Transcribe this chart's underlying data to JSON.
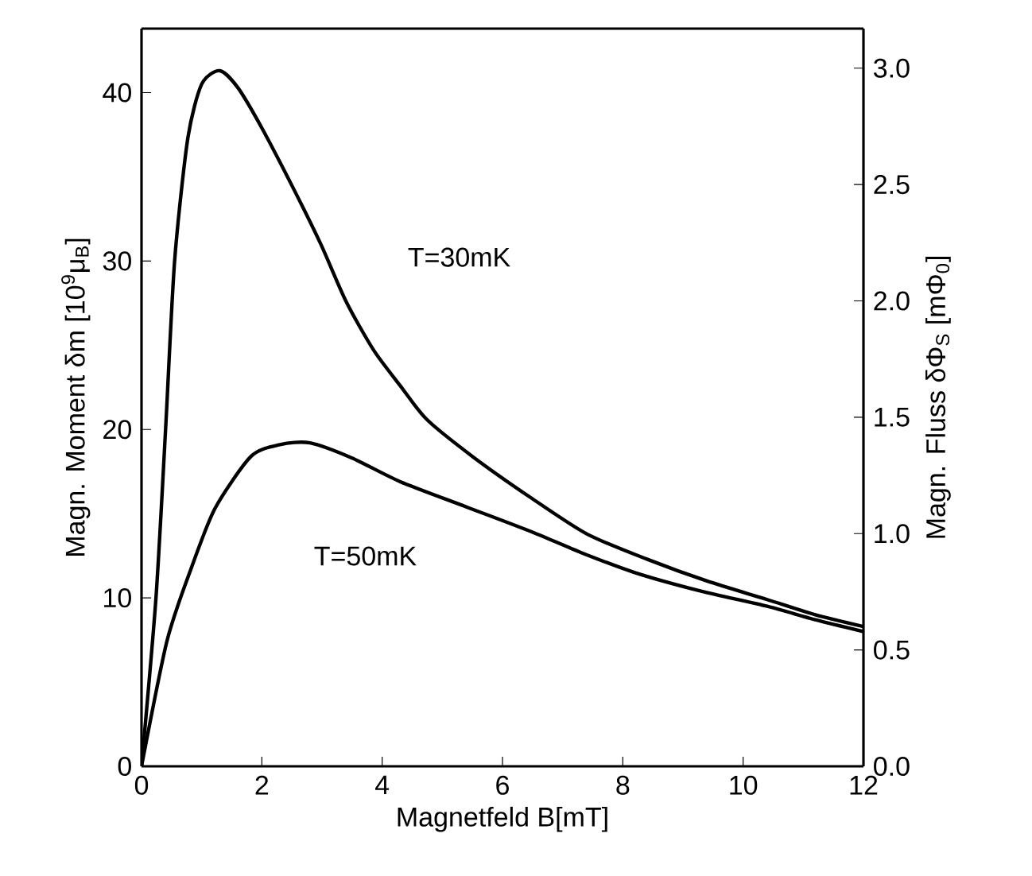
{
  "chart_data": {
    "type": "line",
    "xlabel": "Magnetfeld B[mT]",
    "ylabel": "Magn. Moment δm [10$^{9}$μ$_{B}$]",
    "y2label": "Magn. Fluss δΦ$_{S}$ [mΦ$_{0}$]",
    "xlim": [
      0,
      12
    ],
    "ylim": [
      0,
      43.8
    ],
    "y2lim": [
      0,
      3.17
    ],
    "xticks": [
      0,
      2,
      4,
      6,
      8,
      10,
      12
    ],
    "yticks": [
      0,
      10,
      20,
      30,
      40
    ],
    "y2ticks": [
      {
        "value": 0,
        "label": "0.0"
      },
      {
        "value": 0.5,
        "label": "0.5"
      },
      {
        "value": 1,
        "label": "1.0"
      },
      {
        "value": 1.5,
        "label": "1.5"
      },
      {
        "value": 2,
        "label": "2.0"
      },
      {
        "value": 2.5,
        "label": "2.5"
      },
      {
        "value": 3,
        "label": "3.0"
      }
    ],
    "series": [
      {
        "color": "#000000",
        "x": [
          0,
          0.24,
          0.4,
          0.55,
          0.77,
          1.0,
          1.3,
          1.6,
          2.0,
          2.54,
          2.98,
          3.4,
          3.86,
          4.3,
          4.74,
          5.5,
          6.45,
          7.4,
          8.4,
          9.4,
          10.4,
          11.2,
          12
        ],
        "values": [
          0,
          10,
          20,
          30,
          37.3,
          40.5,
          41.3,
          40.3,
          37.9,
          34.2,
          31.0,
          27.6,
          24.7,
          22.6,
          20.6,
          18.4,
          16.0,
          13.8,
          12.3,
          11.0,
          9.9,
          9.0,
          8.3
        ]
      },
      {
        "color": "#000000",
        "x": [
          0,
          0.42,
          0.8,
          1.22,
          1.82,
          2.3,
          2.8,
          3.5,
          4.3,
          5.4,
          6.5,
          7.3,
          8.2,
          9.3,
          10.4,
          11.2,
          12
        ],
        "values": [
          0,
          7.4,
          11.5,
          15.3,
          18.4,
          19.1,
          19.2,
          18.3,
          16.9,
          15.4,
          13.9,
          12.7,
          11.5,
          10.4,
          9.5,
          8.7,
          8.0
        ]
      }
    ],
    "annotations": [
      "T=30mK",
      "T=50mK"
    ]
  }
}
